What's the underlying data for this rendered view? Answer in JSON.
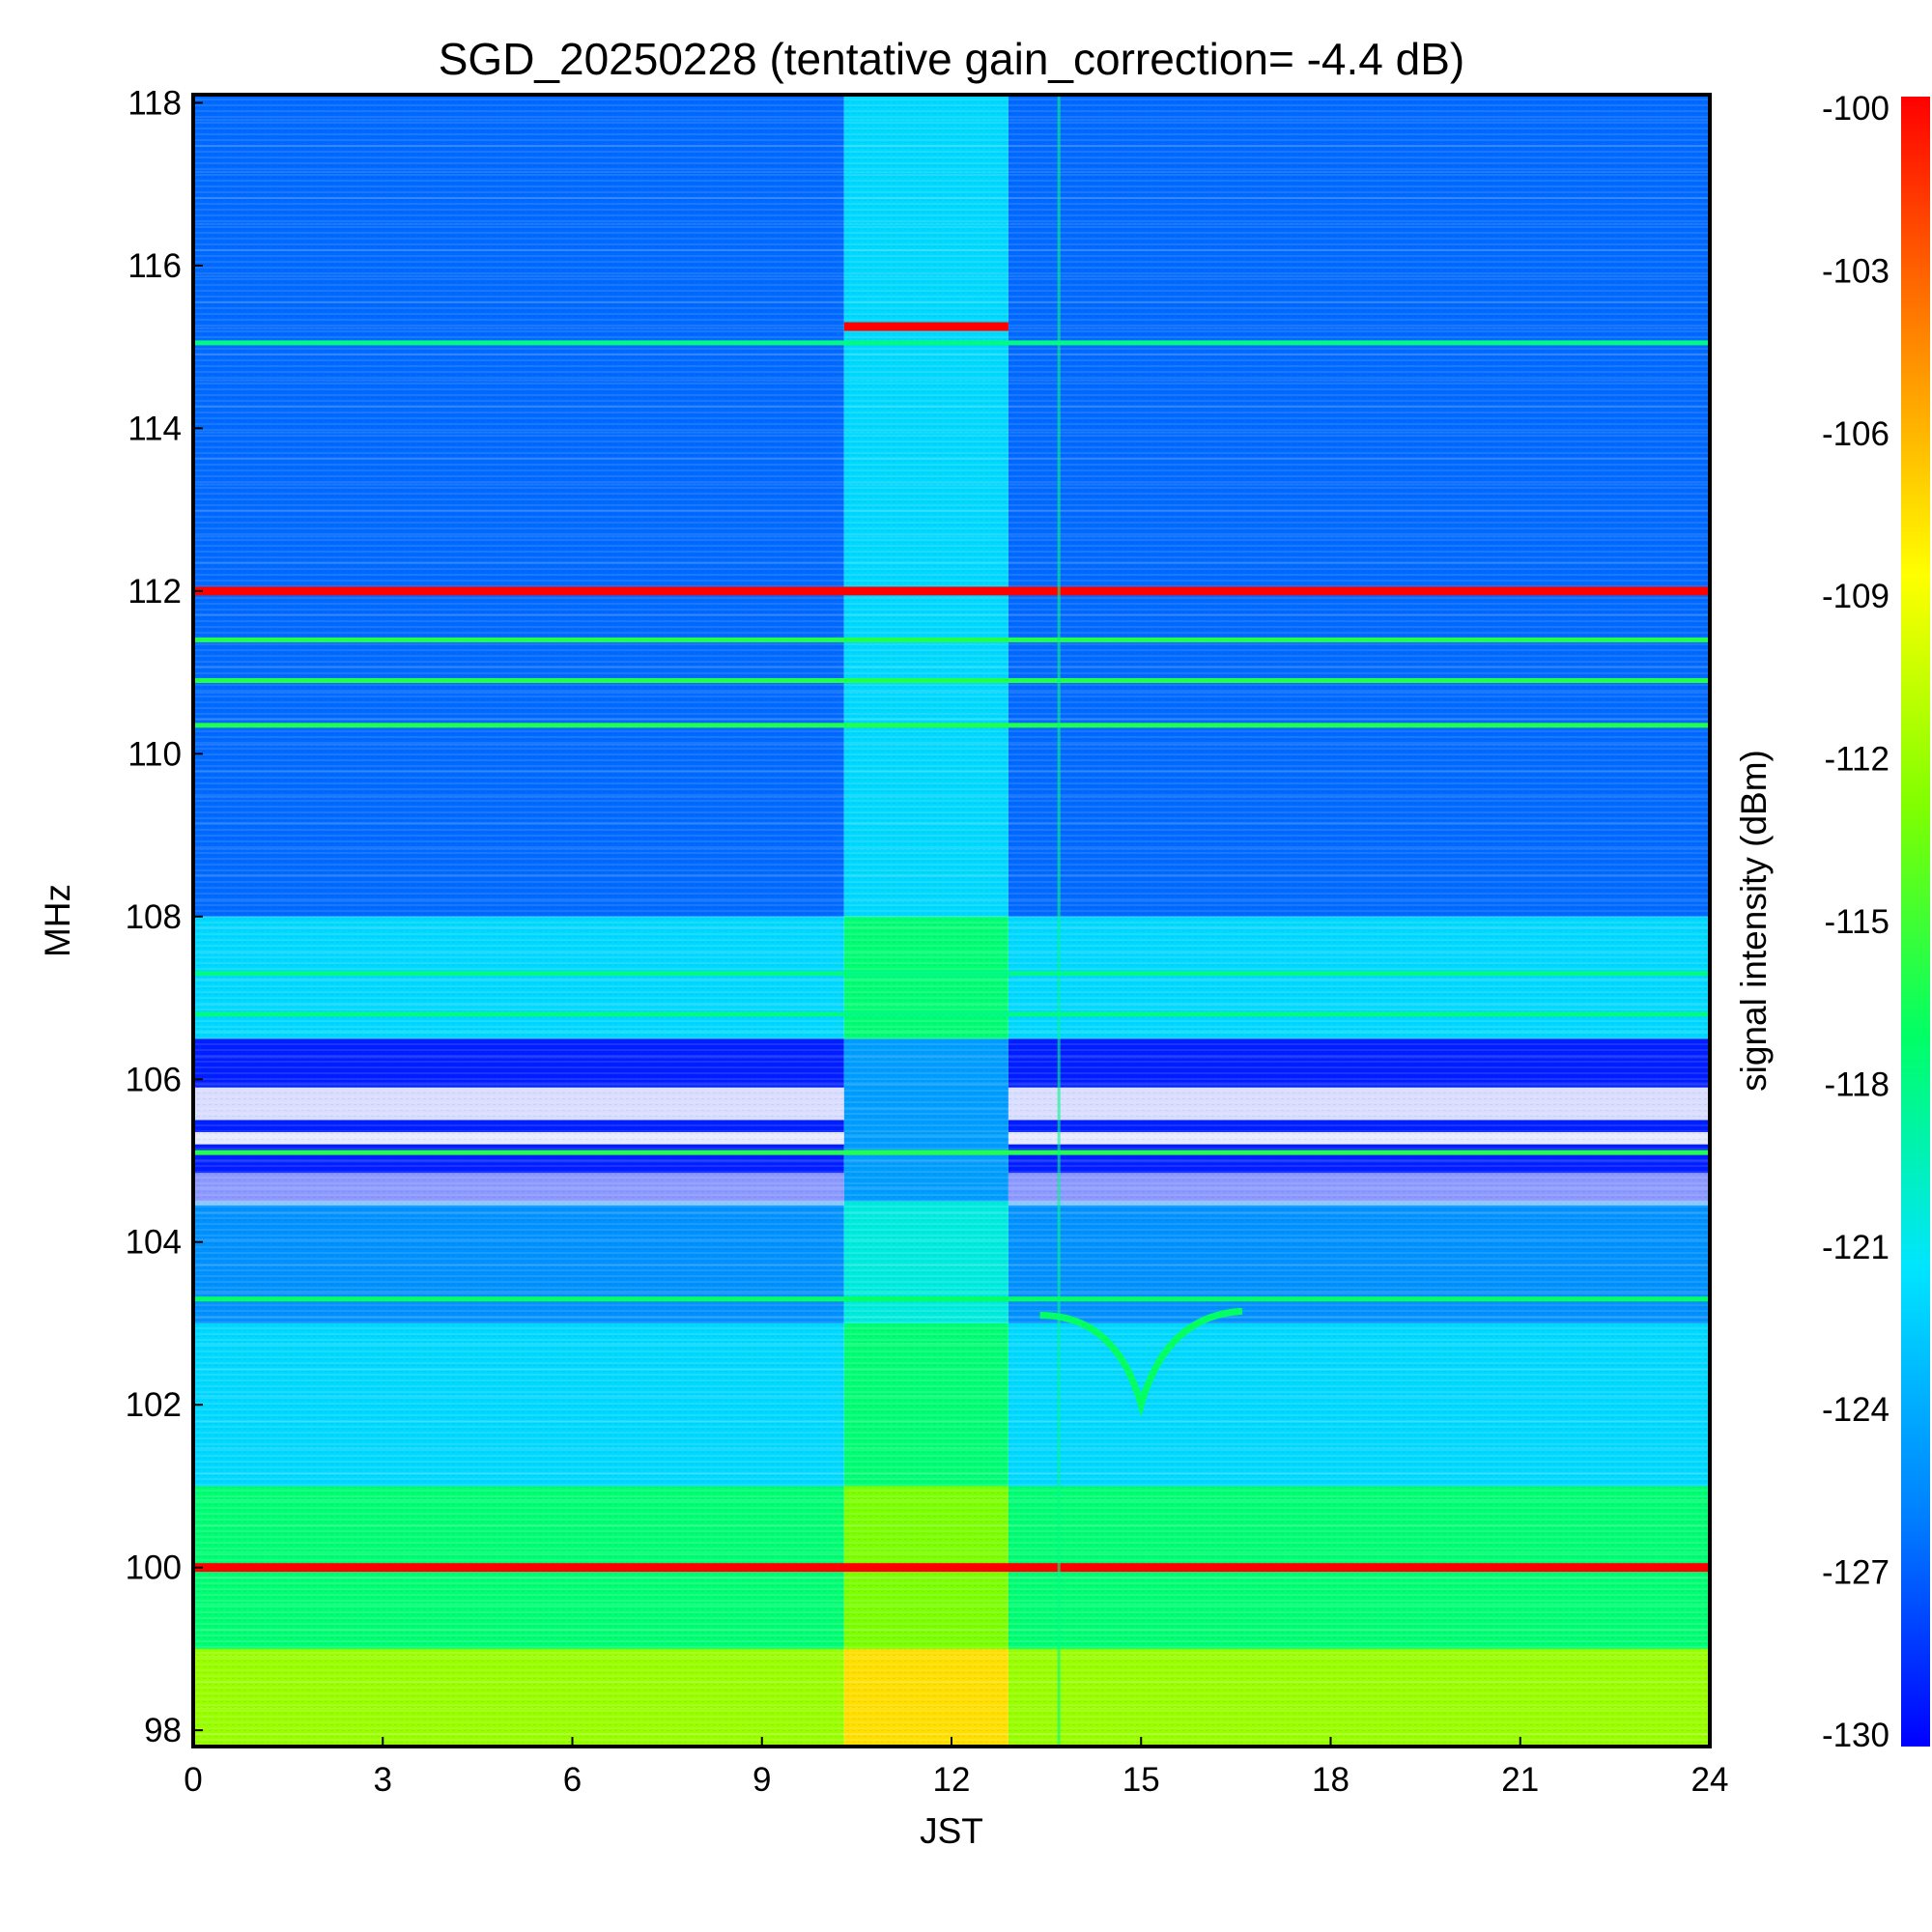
{
  "chart_data": {
    "type": "heatmap",
    "title": "SGD_20250228 (tentative gain_correction= -4.4 dB)",
    "xlabel": "JST",
    "ylabel": "MHz",
    "colorbar_label": "signal intensity (dBm)",
    "xlim": [
      0,
      24
    ],
    "ylim": [
      97.8,
      118.1
    ],
    "clim": [
      -130,
      -100
    ],
    "x_ticks": [
      "0",
      "3",
      "6",
      "9",
      "12",
      "15",
      "18",
      "21",
      "24"
    ],
    "y_ticks": [
      "98",
      "100",
      "102",
      "104",
      "106",
      "108",
      "110",
      "112",
      "114",
      "116",
      "118"
    ],
    "colorbar_ticks": [
      "-100",
      "-103",
      "-106",
      "-109",
      "-112",
      "-115",
      "-118",
      "-121",
      "-124",
      "-127",
      "-130"
    ],
    "colormap": "rainbow (blue to red)",
    "colormap_stops": [
      "#0000ff",
      "#0080ff",
      "#00e5ff",
      "#00ff66",
      "#80ff00",
      "#ffff00",
      "#ff8000",
      "#ff0000"
    ],
    "grid": false,
    "background_intensity_by_band": [
      {
        "from_mhz": 97.8,
        "to_mhz": 99.0,
        "dbm": -112
      },
      {
        "from_mhz": 99.0,
        "to_mhz": 101.0,
        "dbm": -117.5
      },
      {
        "from_mhz": 101.0,
        "to_mhz": 103.0,
        "dbm": -122
      },
      {
        "from_mhz": 103.0,
        "to_mhz": 104.5,
        "dbm": -125
      },
      {
        "from_mhz": 104.5,
        "to_mhz": 106.5,
        "dbm": -129
      },
      {
        "from_mhz": 106.5,
        "to_mhz": 108.0,
        "dbm": -122
      },
      {
        "from_mhz": 108.0,
        "to_mhz": 118.1,
        "dbm": -126.5
      }
    ],
    "features": [
      {
        "kind": "carrier",
        "freq_mhz": 112.0,
        "dbm": -100
      },
      {
        "kind": "carrier",
        "freq_mhz": 100.0,
        "dbm": -100
      },
      {
        "kind": "carrier",
        "freq_mhz": 115.25,
        "dbm": -100,
        "time_from": 10.3,
        "time_to": 12.9
      },
      {
        "kind": "carrier",
        "freq_mhz": 111.4,
        "dbm": -116
      },
      {
        "kind": "carrier",
        "freq_mhz": 110.9,
        "dbm": -116
      },
      {
        "kind": "carrier",
        "freq_mhz": 110.35,
        "dbm": -116
      },
      {
        "kind": "carrier",
        "freq_mhz": 115.05,
        "dbm": -118
      },
      {
        "kind": "carrier",
        "freq_mhz": 107.3,
        "dbm": -118
      },
      {
        "kind": "carrier",
        "freq_mhz": 106.8,
        "dbm": -118
      },
      {
        "kind": "carrier",
        "freq_mhz": 105.1,
        "dbm": -116
      },
      {
        "kind": "carrier",
        "freq_mhz": 103.3,
        "dbm": -117
      },
      {
        "kind": "enhanced_period",
        "time_from": 10.3,
        "time_to": 12.9,
        "dbm_offset": 4.5
      },
      {
        "kind": "dip",
        "time_center": 15.0,
        "freq_from_mhz": 103.1,
        "freq_to_mhz": 102.0
      }
    ]
  }
}
